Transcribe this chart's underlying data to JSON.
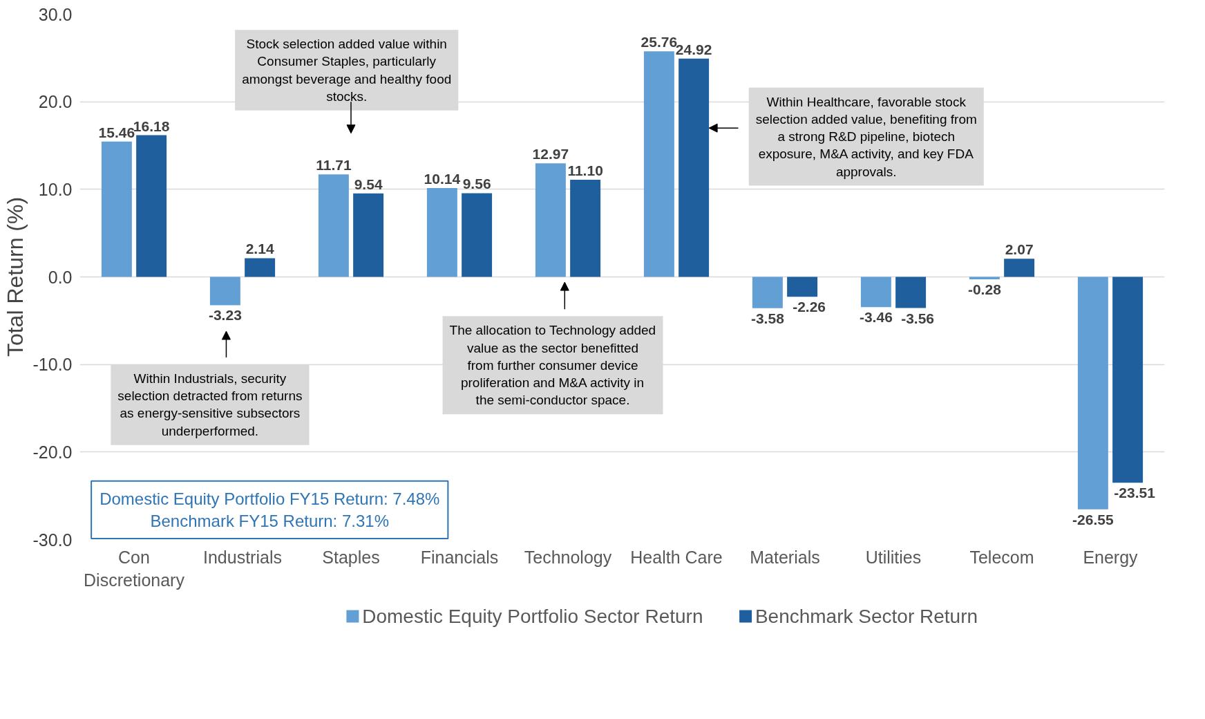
{
  "chart_data": {
    "type": "bar",
    "ylabel": "Total Return (%)",
    "categories": [
      "Con Discretionary",
      "Industrials",
      "Staples",
      "Financials",
      "Technology",
      "Health Care",
      "Materials",
      "Utilities",
      "Telecom",
      "Energy"
    ],
    "series": [
      {
        "name": "Domestic Equity Portfolio Sector Return",
        "color": "#629fd4",
        "values": [
          15.46,
          -3.23,
          11.71,
          10.14,
          12.97,
          25.76,
          -3.58,
          -3.46,
          -0.28,
          -26.55
        ],
        "value_labels": [
          "15.46",
          "-3.23",
          "11.71",
          "10.14",
          "12.97",
          "25.76",
          "-3.58",
          "-3.46",
          "-0.28",
          "-26.55"
        ]
      },
      {
        "name": "Benchmark Sector Return",
        "color": "#1f5f9e",
        "values": [
          16.18,
          2.14,
          9.54,
          9.56,
          11.1,
          24.92,
          -2.26,
          -3.56,
          2.07,
          -23.51
        ],
        "value_labels": [
          "16.18",
          "2.14",
          "9.54",
          "9.56",
          "11.10",
          "24.92",
          "-2.26",
          "-3.56",
          "2.07",
          "-23.51"
        ]
      }
    ],
    "ylim": [
      -30,
      30
    ],
    "yticks": [
      {
        "value": -30,
        "label": "-30.0"
      },
      {
        "value": -20,
        "label": "-20.0"
      },
      {
        "value": -10,
        "label": "-10.0"
      },
      {
        "value": 0,
        "label": "0.0"
      },
      {
        "value": 10,
        "label": "10.0"
      },
      {
        "value": 20,
        "label": "20.0"
      },
      {
        "value": 30,
        "label": "30.0"
      }
    ],
    "grid": "y",
    "legend": "bottom",
    "annotations": [
      "Stock selection added value within Consumer Staples, particularly amongst beverage and healthy food stocks.",
      "Within Industrials, security selection detracted from returns as energy-sensitive subsectors underperformed.",
      "The allocation to Technology added value as the sector benefitted from further consumer device proliferation and M&A activity in the semi-conductor space.",
      "Within Healthcare, favorable stock selection added value, benefiting from a strong R&D pipeline, biotech exposure, M&A activity, and key FDA approvals.",
      "Domestic Equity Portfolio FY15 Return: 7.48%",
      "Benchmark FY15 Return: 7.31%"
    ]
  }
}
